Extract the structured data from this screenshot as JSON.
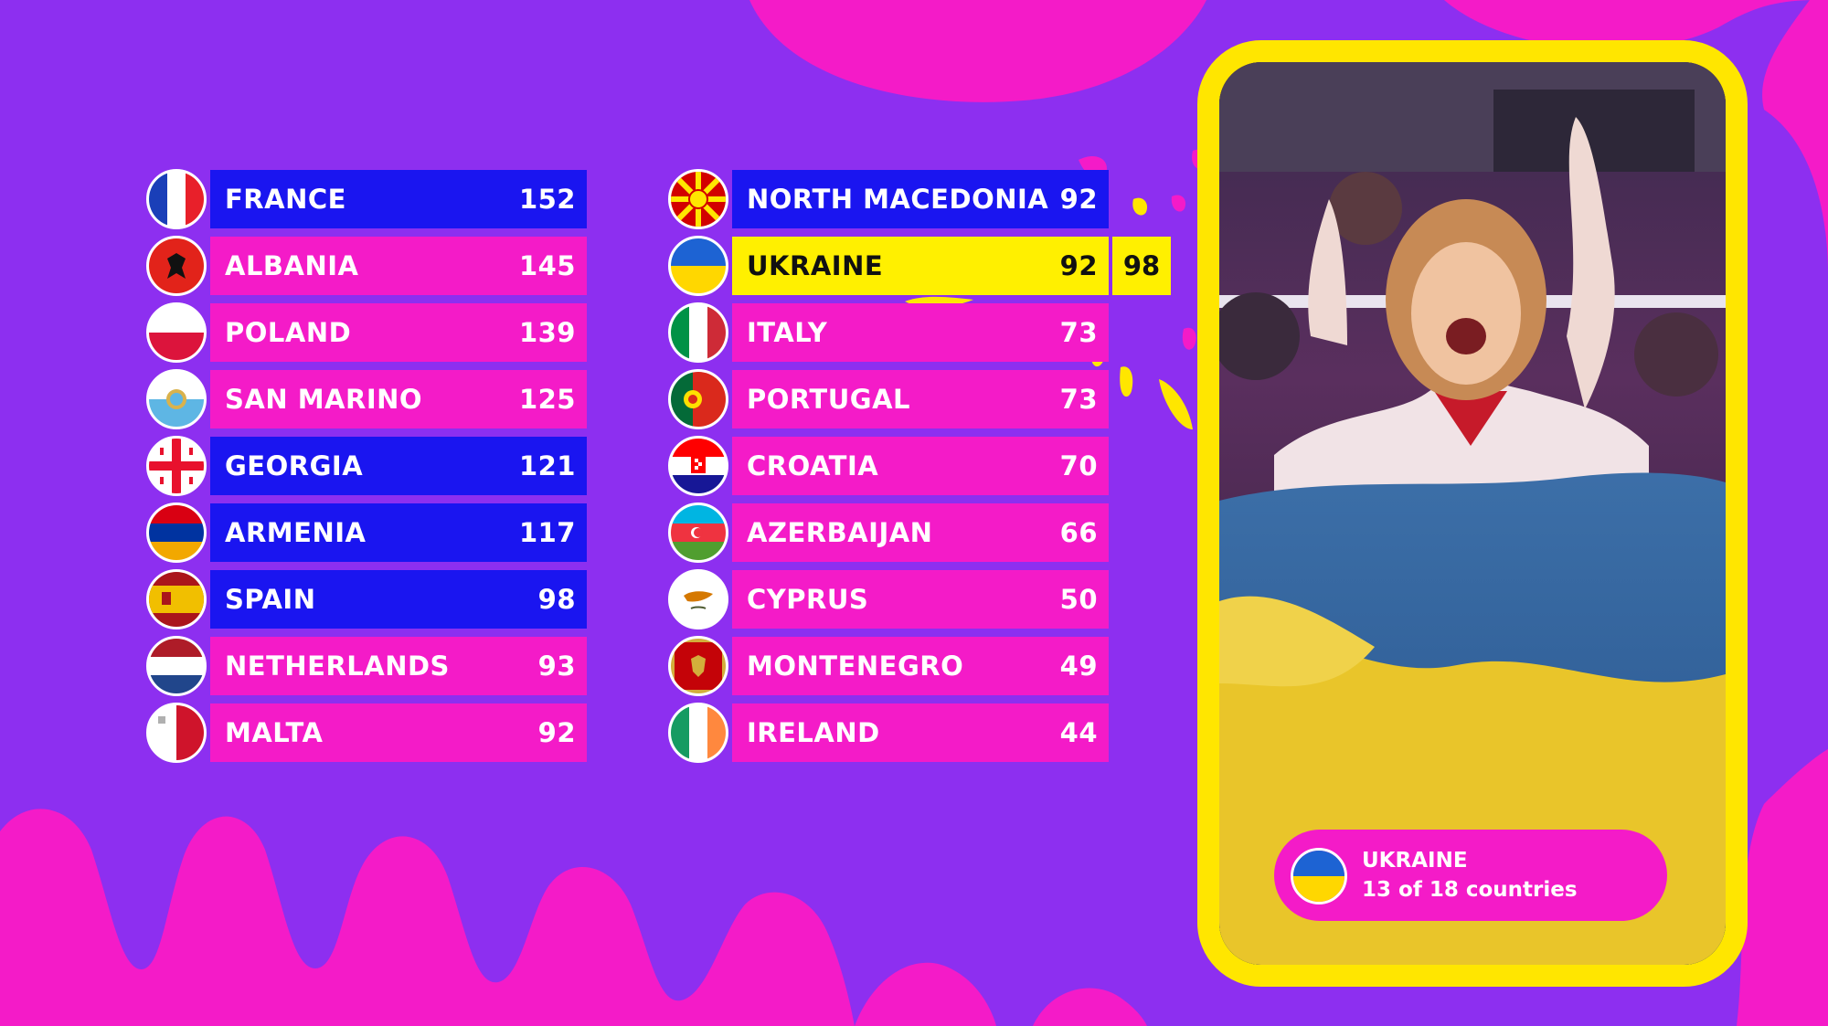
{
  "leaderboard": {
    "left": [
      {
        "country": "FRANCE",
        "points": "152",
        "style": "blue",
        "flag": "france-flag"
      },
      {
        "country": "ALBANIA",
        "points": "145",
        "style": "pink",
        "flag": "albania-flag"
      },
      {
        "country": "POLAND",
        "points": "139",
        "style": "pink",
        "flag": "poland-flag"
      },
      {
        "country": "SAN MARINO",
        "points": "125",
        "style": "pink",
        "flag": "san-marino-flag"
      },
      {
        "country": "GEORGIA",
        "points": "121",
        "style": "blue",
        "flag": "georgia-flag"
      },
      {
        "country": "ARMENIA",
        "points": "117",
        "style": "blue",
        "flag": "armenia-flag"
      },
      {
        "country": "SPAIN",
        "points": "98",
        "style": "blue",
        "flag": "spain-flag"
      },
      {
        "country": "NETHERLANDS",
        "points": "93",
        "style": "pink",
        "flag": "netherlands-flag"
      },
      {
        "country": "MALTA",
        "points": "92",
        "style": "pink",
        "flag": "malta-flag"
      }
    ],
    "right": [
      {
        "country": "NORTH MACEDONIA",
        "points": "92",
        "style": "blue",
        "flag": "north-macedonia-flag"
      },
      {
        "country": "UKRAINE",
        "points": "92",
        "style": "yellow",
        "added_points": "98",
        "flag": "ukraine-flag"
      },
      {
        "country": "ITALY",
        "points": "73",
        "style": "pink",
        "flag": "italy-flag"
      },
      {
        "country": "PORTUGAL",
        "points": "73",
        "style": "pink",
        "flag": "portugal-flag"
      },
      {
        "country": "CROATIA",
        "points": "70",
        "style": "pink",
        "flag": "croatia-flag"
      },
      {
        "country": "AZERBAIJAN",
        "points": "66",
        "style": "pink",
        "flag": "azerbaijan-flag"
      },
      {
        "country": "CYPRUS",
        "points": "50",
        "style": "pink",
        "flag": "cyprus-flag"
      },
      {
        "country": "MONTENEGRO",
        "points": "49",
        "style": "pink",
        "flag": "montenegro-flag"
      },
      {
        "country": "IRELAND",
        "points": "44",
        "style": "pink",
        "flag": "ireland-flag"
      }
    ]
  },
  "video": {
    "caption": {
      "country": "UKRAINE",
      "progress": "13 of 18 countries",
      "flag": "ukraine-flag"
    }
  },
  "colors": {
    "background": "#8d2ff0",
    "pink": "#f41bc8",
    "blue": "#1a15f0",
    "highlight": "#fff000",
    "frame": "#ffe600"
  }
}
